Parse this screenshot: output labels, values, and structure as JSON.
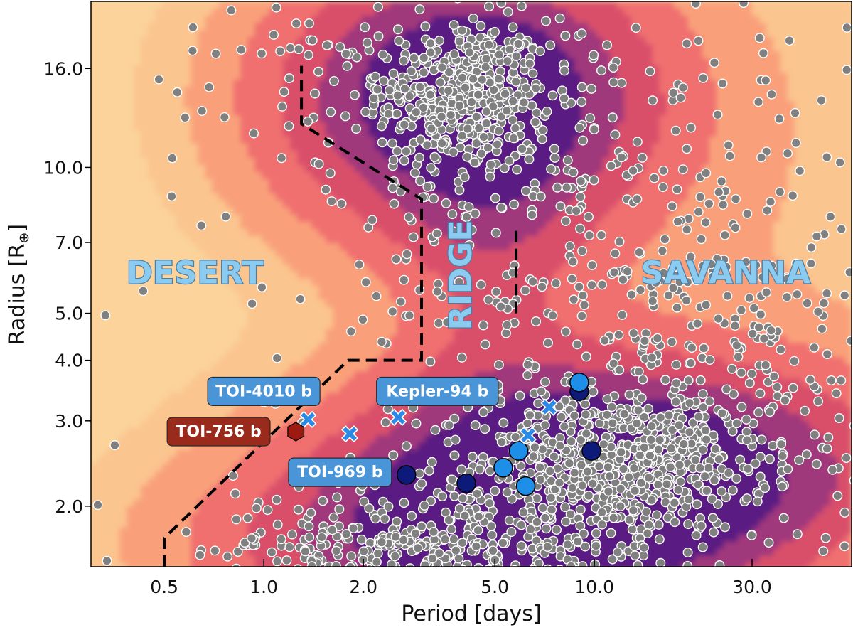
{
  "chart_data": {
    "type": "scatter",
    "xlabel": "Period [days]",
    "ylabel_main": "Radius [R",
    "ylabel_symbol": "⊕",
    "ylabel_close": "]",
    "xscale": "log",
    "yscale": "log",
    "xlim": [
      0.3,
      60
    ],
    "ylim": [
      1.5,
      22
    ],
    "x_ticks": [
      {
        "value": 0.5,
        "label": "0.5"
      },
      {
        "value": 1.0,
        "label": "1.0"
      },
      {
        "value": 2.0,
        "label": "2.0"
      },
      {
        "value": 5.0,
        "label": "5.0"
      },
      {
        "value": 10.0,
        "label": "10.0"
      },
      {
        "value": 30.0,
        "label": "30.0"
      }
    ],
    "y_ticks": [
      {
        "value": 2.0,
        "label": "2.0"
      },
      {
        "value": 3.0,
        "label": "3.0"
      },
      {
        "value": 4.0,
        "label": "4.0"
      },
      {
        "value": 5.0,
        "label": "5.0"
      },
      {
        "value": 7.0,
        "label": "7.0"
      },
      {
        "value": 10.0,
        "label": "10.0"
      },
      {
        "value": 16.0,
        "label": "16.0"
      }
    ],
    "regions": [
      {
        "label": "DESERT",
        "period": 0.62,
        "radius": 6.0
      },
      {
        "label": "RIDGE",
        "period": 4.0,
        "radius": 6.0,
        "rotated": true
      },
      {
        "label": "SAVANNA",
        "period": 25.0,
        "radius": 6.0
      }
    ],
    "boundaries": [
      {
        "name": "desert-boundary",
        "points": [
          [
            0.5,
            1.5
          ],
          [
            0.5,
            1.72
          ],
          [
            1.8,
            4.0
          ],
          [
            3.0,
            4.0
          ],
          [
            3.0,
            8.6
          ],
          [
            1.3,
            12.3
          ],
          [
            1.3,
            16.2
          ]
        ]
      },
      {
        "name": "ridge-savanna-boundary",
        "points": [
          [
            5.8,
            5.0
          ],
          [
            5.8,
            7.4
          ]
        ]
      }
    ],
    "density_clusters": [
      {
        "name": "hot-jupiters",
        "period": 4.0,
        "radius": 14.0,
        "sp": 0.4,
        "sr": 0.2,
        "weight": 1.0
      },
      {
        "name": "sub-neptunes",
        "period": 12.0,
        "radius": 2.45,
        "sp": 0.55,
        "sr": 0.15,
        "weight": 0.95
      },
      {
        "name": "super-earths",
        "period": 4.5,
        "radius": 1.6,
        "sp": 0.55,
        "sr": 0.14,
        "weight": 0.75
      },
      {
        "name": "ridge-bridge",
        "period": 5.0,
        "radius": 6.5,
        "sp": 0.2,
        "sr": 0.3,
        "weight": 0.22
      },
      {
        "name": "savanna-spread",
        "period": 20.0,
        "radius": 6.0,
        "sp": 0.7,
        "sr": 0.55,
        "weight": 0.1
      }
    ],
    "series": [
      {
        "name": "targets-dark",
        "marker": "circle",
        "color": "#0d1a7a",
        "points": [
          [
            2.7,
            2.32
          ],
          [
            4.1,
            2.23
          ],
          [
            9.0,
            3.45
          ],
          [
            9.8,
            2.6
          ]
        ]
      },
      {
        "name": "targets-light",
        "marker": "circle",
        "color": "#1e8fe8",
        "points": [
          [
            5.3,
            2.4
          ],
          [
            5.9,
            2.6
          ],
          [
            6.2,
            2.2
          ],
          [
            9.0,
            3.6
          ]
        ]
      },
      {
        "name": "targets-cross",
        "marker": "x",
        "color": "#2b8ae6",
        "points": [
          [
            1.36,
            3.02
          ],
          [
            1.82,
            2.82
          ],
          [
            2.55,
            3.05
          ],
          [
            6.3,
            2.8
          ],
          [
            7.3,
            3.2
          ]
        ]
      },
      {
        "name": "TOI-756 b",
        "marker": "hexagon",
        "color": "#9c1a10",
        "points": [
          [
            1.25,
            2.85
          ]
        ]
      }
    ],
    "callouts": [
      {
        "label": "TOI-4010 b",
        "period": 1.0,
        "radius": 3.45,
        "color": "#4a95d8"
      },
      {
        "label": "Kepler-94 b",
        "period": 3.35,
        "radius": 3.45,
        "color": "#4a95d8"
      },
      {
        "label": "TOI-756 b",
        "period": 0.73,
        "radius": 2.85,
        "color": "#9a2a1c"
      },
      {
        "label": "TOI-969 b",
        "period": 1.7,
        "radius": 2.35,
        "color": "#4a95d8"
      }
    ]
  },
  "colors": {
    "background": "#fbd39b",
    "density": [
      "#fbc58f",
      "#f9a07a",
      "#f07070",
      "#d9506a",
      "#a0387c",
      "#5a1a82"
    ],
    "population_fill": "#808080",
    "population_edge": "#ffffff"
  }
}
